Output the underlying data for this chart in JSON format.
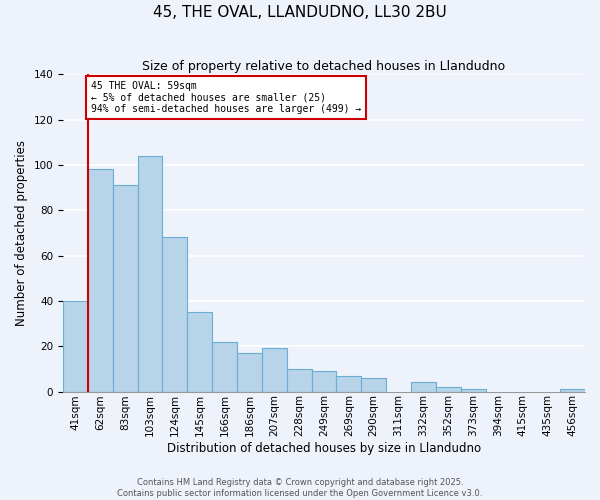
{
  "title": "45, THE OVAL, LLANDUDNO, LL30 2BU",
  "subtitle": "Size of property relative to detached houses in Llandudno",
  "xlabel": "Distribution of detached houses by size in Llandudno",
  "ylabel": "Number of detached properties",
  "categories": [
    "41sqm",
    "62sqm",
    "83sqm",
    "103sqm",
    "124sqm",
    "145sqm",
    "166sqm",
    "186sqm",
    "207sqm",
    "228sqm",
    "249sqm",
    "269sqm",
    "290sqm",
    "311sqm",
    "332sqm",
    "352sqm",
    "373sqm",
    "394sqm",
    "415sqm",
    "435sqm",
    "456sqm"
  ],
  "values": [
    40,
    98,
    91,
    104,
    68,
    35,
    22,
    17,
    19,
    10,
    9,
    7,
    6,
    0,
    4,
    2,
    1,
    0,
    0,
    0,
    1
  ],
  "bar_color": "#b8d4e8",
  "bar_edge_color": "#6aadd5",
  "marker_line_color": "#cc0000",
  "annotation_title": "45 THE OVAL: 59sqm",
  "annotation_line1": "← 5% of detached houses are smaller (25)",
  "annotation_line2": "94% of semi-detached houses are larger (499) →",
  "annotation_box_color": "#ffffff",
  "annotation_box_edge_color": "#cc0000",
  "ylim": [
    0,
    140
  ],
  "yticks": [
    0,
    20,
    40,
    60,
    80,
    100,
    120,
    140
  ],
  "footer1": "Contains HM Land Registry data © Crown copyright and database right 2025.",
  "footer2": "Contains public sector information licensed under the Open Government Licence v3.0.",
  "background_color": "#eef2fa",
  "grid_color": "#ffffff",
  "title_fontsize": 11,
  "subtitle_fontsize": 9,
  "axis_label_fontsize": 8.5,
  "tick_fontsize": 7.5,
  "footer_fontsize": 6
}
